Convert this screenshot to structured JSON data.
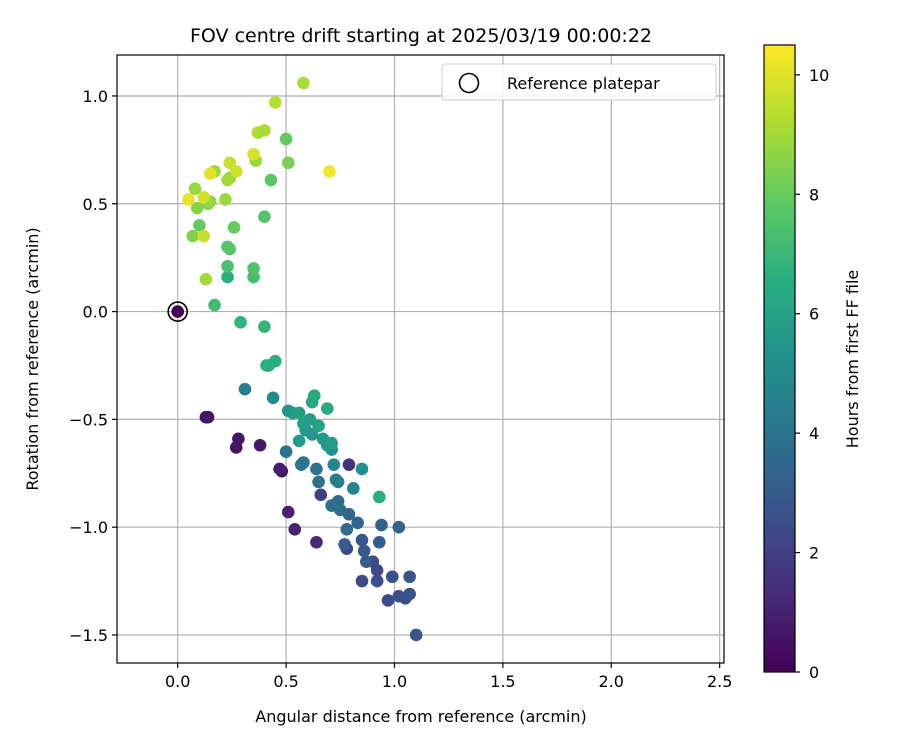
{
  "chart_data": {
    "type": "scatter",
    "title": "FOV centre drift starting at 2025/03/19 00:00:22",
    "xlabel": "Angular distance from reference (arcmin)",
    "ylabel": "Rotation from reference (arcmin)",
    "xlim": [
      -0.28,
      2.52
    ],
    "ylim": [
      -1.63,
      1.19
    ],
    "x_ticks": [
      0.0,
      0.5,
      1.0,
      1.5,
      2.0,
      2.5
    ],
    "x_tick_labels": [
      "0.0",
      "0.5",
      "1.0",
      "1.5",
      "2.0",
      "2.5"
    ],
    "y_ticks": [
      -1.5,
      -1.0,
      -0.5,
      0.0,
      0.5,
      1.0
    ],
    "y_tick_labels": [
      "−1.5",
      "−1.0",
      "−0.5",
      "0.0",
      "0.5",
      "1.0"
    ],
    "grid": true,
    "legend": {
      "entries": [
        "Reference platepar"
      ],
      "placement": "top-right"
    },
    "colorbar": {
      "label": "Hours from first FF file",
      "colormap": "viridis",
      "range": [
        0,
        10.5
      ],
      "ticks": [
        0,
        2,
        4,
        6,
        8,
        10
      ],
      "tick_labels": [
        "0",
        "2",
        "4",
        "6",
        "8",
        "10"
      ]
    },
    "reference_point": {
      "x": 0.0,
      "y": 0.0,
      "label": "Reference platepar"
    },
    "points": [
      {
        "x": 0.0,
        "y": 0.0,
        "c": 0.0
      },
      {
        "x": 0.13,
        "y": -0.49,
        "c": 0.5
      },
      {
        "x": 0.14,
        "y": -0.49,
        "c": 0.6
      },
      {
        "x": 0.28,
        "y": -0.59,
        "c": 0.6
      },
      {
        "x": 0.27,
        "y": -0.63,
        "c": 0.6
      },
      {
        "x": 0.38,
        "y": -0.62,
        "c": 0.7
      },
      {
        "x": 0.48,
        "y": -0.74,
        "c": 0.6
      },
      {
        "x": 0.47,
        "y": -0.73,
        "c": 0.9
      },
      {
        "x": 0.51,
        "y": -0.93,
        "c": 1.0
      },
      {
        "x": 0.54,
        "y": -1.01,
        "c": 1.1
      },
      {
        "x": 0.64,
        "y": -1.07,
        "c": 1.2
      },
      {
        "x": 0.79,
        "y": -0.71,
        "c": 1.6
      },
      {
        "x": 0.66,
        "y": -0.85,
        "c": 2.0
      },
      {
        "x": 0.78,
        "y": -1.1,
        "c": 2.1
      },
      {
        "x": 0.85,
        "y": -1.25,
        "c": 2.3
      },
      {
        "x": 0.9,
        "y": -1.16,
        "c": 2.4
      },
      {
        "x": 0.92,
        "y": -1.2,
        "c": 2.4
      },
      {
        "x": 0.92,
        "y": -1.25,
        "c": 2.5
      },
      {
        "x": 0.97,
        "y": -1.34,
        "c": 2.5
      },
      {
        "x": 0.99,
        "y": -1.23,
        "c": 2.6
      },
      {
        "x": 1.02,
        "y": -1.32,
        "c": 2.6
      },
      {
        "x": 1.05,
        "y": -1.33,
        "c": 2.6
      },
      {
        "x": 1.07,
        "y": -1.31,
        "c": 2.7
      },
      {
        "x": 1.07,
        "y": -1.23,
        "c": 2.8
      },
      {
        "x": 1.1,
        "y": -1.5,
        "c": 2.7
      },
      {
        "x": 0.85,
        "y": -1.06,
        "c": 2.9
      },
      {
        "x": 0.86,
        "y": -1.11,
        "c": 2.9
      },
      {
        "x": 0.87,
        "y": -1.16,
        "c": 3.0
      },
      {
        "x": 0.77,
        "y": -1.08,
        "c": 3.0
      },
      {
        "x": 0.93,
        "y": -1.07,
        "c": 3.1
      },
      {
        "x": 0.94,
        "y": -0.99,
        "c": 3.3
      },
      {
        "x": 1.02,
        "y": -1.0,
        "c": 3.4
      },
      {
        "x": 0.83,
        "y": -0.98,
        "c": 3.5
      },
      {
        "x": 0.79,
        "y": -0.94,
        "c": 3.5
      },
      {
        "x": 0.78,
        "y": -1.01,
        "c": 3.6
      },
      {
        "x": 0.74,
        "y": -0.88,
        "c": 3.6
      },
      {
        "x": 0.71,
        "y": -0.9,
        "c": 3.7
      },
      {
        "x": 0.75,
        "y": -0.92,
        "c": 3.8
      },
      {
        "x": 0.65,
        "y": -0.79,
        "c": 3.8
      },
      {
        "x": 0.64,
        "y": -0.73,
        "c": 3.9
      },
      {
        "x": 0.5,
        "y": -0.65,
        "c": 3.9
      },
      {
        "x": 0.58,
        "y": -0.7,
        "c": 4.0
      },
      {
        "x": 0.57,
        "y": -0.71,
        "c": 4.1
      },
      {
        "x": 0.31,
        "y": -0.36,
        "c": 4.5
      },
      {
        "x": 0.44,
        "y": -0.4,
        "c": 5.0
      },
      {
        "x": 0.74,
        "y": -0.79,
        "c": 4.4
      },
      {
        "x": 0.73,
        "y": -0.78,
        "c": 4.5
      },
      {
        "x": 0.81,
        "y": -0.82,
        "c": 4.8
      },
      {
        "x": 0.85,
        "y": -0.73,
        "c": 5.2
      },
      {
        "x": 0.72,
        "y": -0.71,
        "c": 4.7
      },
      {
        "x": 0.71,
        "y": -0.64,
        "c": 5.3
      },
      {
        "x": 0.69,
        "y": -0.62,
        "c": 5.5
      },
      {
        "x": 0.67,
        "y": -0.59,
        "c": 5.6
      },
      {
        "x": 0.71,
        "y": -0.61,
        "c": 5.8
      },
      {
        "x": 0.62,
        "y": -0.57,
        "c": 5.5
      },
      {
        "x": 0.59,
        "y": -0.55,
        "c": 5.6
      },
      {
        "x": 0.56,
        "y": -0.6,
        "c": 5.7
      },
      {
        "x": 0.58,
        "y": -0.52,
        "c": 5.9
      },
      {
        "x": 0.61,
        "y": -0.5,
        "c": 5.9
      },
      {
        "x": 0.51,
        "y": -0.46,
        "c": 5.5
      },
      {
        "x": 0.53,
        "y": -0.47,
        "c": 5.6
      },
      {
        "x": 0.56,
        "y": -0.47,
        "c": 5.8
      },
      {
        "x": 0.65,
        "y": -0.53,
        "c": 6.0
      },
      {
        "x": 0.62,
        "y": -0.42,
        "c": 6.2
      },
      {
        "x": 0.63,
        "y": -0.39,
        "c": 6.3
      },
      {
        "x": 0.69,
        "y": -0.45,
        "c": 6.4
      },
      {
        "x": 0.93,
        "y": -0.86,
        "c": 6.5
      },
      {
        "x": 0.42,
        "y": -0.25,
        "c": 6.5
      },
      {
        "x": 0.41,
        "y": -0.25,
        "c": 6.6
      },
      {
        "x": 0.45,
        "y": -0.23,
        "c": 6.5
      },
      {
        "x": 0.29,
        "y": -0.05,
        "c": 6.8
      },
      {
        "x": 0.4,
        "y": -0.07,
        "c": 6.9
      },
      {
        "x": 0.17,
        "y": 0.03,
        "c": 7.2
      },
      {
        "x": 0.23,
        "y": 0.16,
        "c": 6.6
      },
      {
        "x": 0.35,
        "y": 0.16,
        "c": 7.3
      },
      {
        "x": 0.23,
        "y": 0.21,
        "c": 7.4
      },
      {
        "x": 0.35,
        "y": 0.2,
        "c": 7.5
      },
      {
        "x": 0.23,
        "y": 0.3,
        "c": 7.6
      },
      {
        "x": 0.24,
        "y": 0.29,
        "c": 7.7
      },
      {
        "x": 0.26,
        "y": 0.39,
        "c": 8.0
      },
      {
        "x": 0.4,
        "y": 0.44,
        "c": 7.6
      },
      {
        "x": 0.43,
        "y": 0.61,
        "c": 7.8
      },
      {
        "x": 0.5,
        "y": 0.8,
        "c": 7.9
      },
      {
        "x": 0.51,
        "y": 0.69,
        "c": 8.3
      },
      {
        "x": 0.1,
        "y": 0.4,
        "c": 8.0
      },
      {
        "x": 0.07,
        "y": 0.35,
        "c": 8.4
      },
      {
        "x": 0.09,
        "y": 0.48,
        "c": 8.5
      },
      {
        "x": 0.14,
        "y": 0.5,
        "c": 8.5
      },
      {
        "x": 0.15,
        "y": 0.51,
        "c": 8.7
      },
      {
        "x": 0.08,
        "y": 0.57,
        "c": 8.8
      },
      {
        "x": 0.13,
        "y": 0.15,
        "c": 9.0
      },
      {
        "x": 0.17,
        "y": 0.65,
        "c": 8.9
      },
      {
        "x": 0.22,
        "y": 0.52,
        "c": 8.9
      },
      {
        "x": 0.24,
        "y": 0.62,
        "c": 8.7
      },
      {
        "x": 0.23,
        "y": 0.61,
        "c": 9.0
      },
      {
        "x": 0.36,
        "y": 0.7,
        "c": 8.9
      },
      {
        "x": 0.37,
        "y": 0.83,
        "c": 9.2
      },
      {
        "x": 0.4,
        "y": 0.84,
        "c": 9.1
      },
      {
        "x": 0.45,
        "y": 0.97,
        "c": 9.3
      },
      {
        "x": 0.58,
        "y": 1.06,
        "c": 9.1
      },
      {
        "x": 0.12,
        "y": 0.35,
        "c": 9.6
      },
      {
        "x": 0.12,
        "y": 0.53,
        "c": 9.8
      },
      {
        "x": 0.05,
        "y": 0.52,
        "c": 10.1
      },
      {
        "x": 0.15,
        "y": 0.64,
        "c": 10.0
      },
      {
        "x": 0.24,
        "y": 0.69,
        "c": 9.6
      },
      {
        "x": 0.27,
        "y": 0.65,
        "c": 9.7
      },
      {
        "x": 0.35,
        "y": 0.73,
        "c": 9.9
      },
      {
        "x": 0.7,
        "y": 0.65,
        "c": 10.3
      }
    ]
  }
}
